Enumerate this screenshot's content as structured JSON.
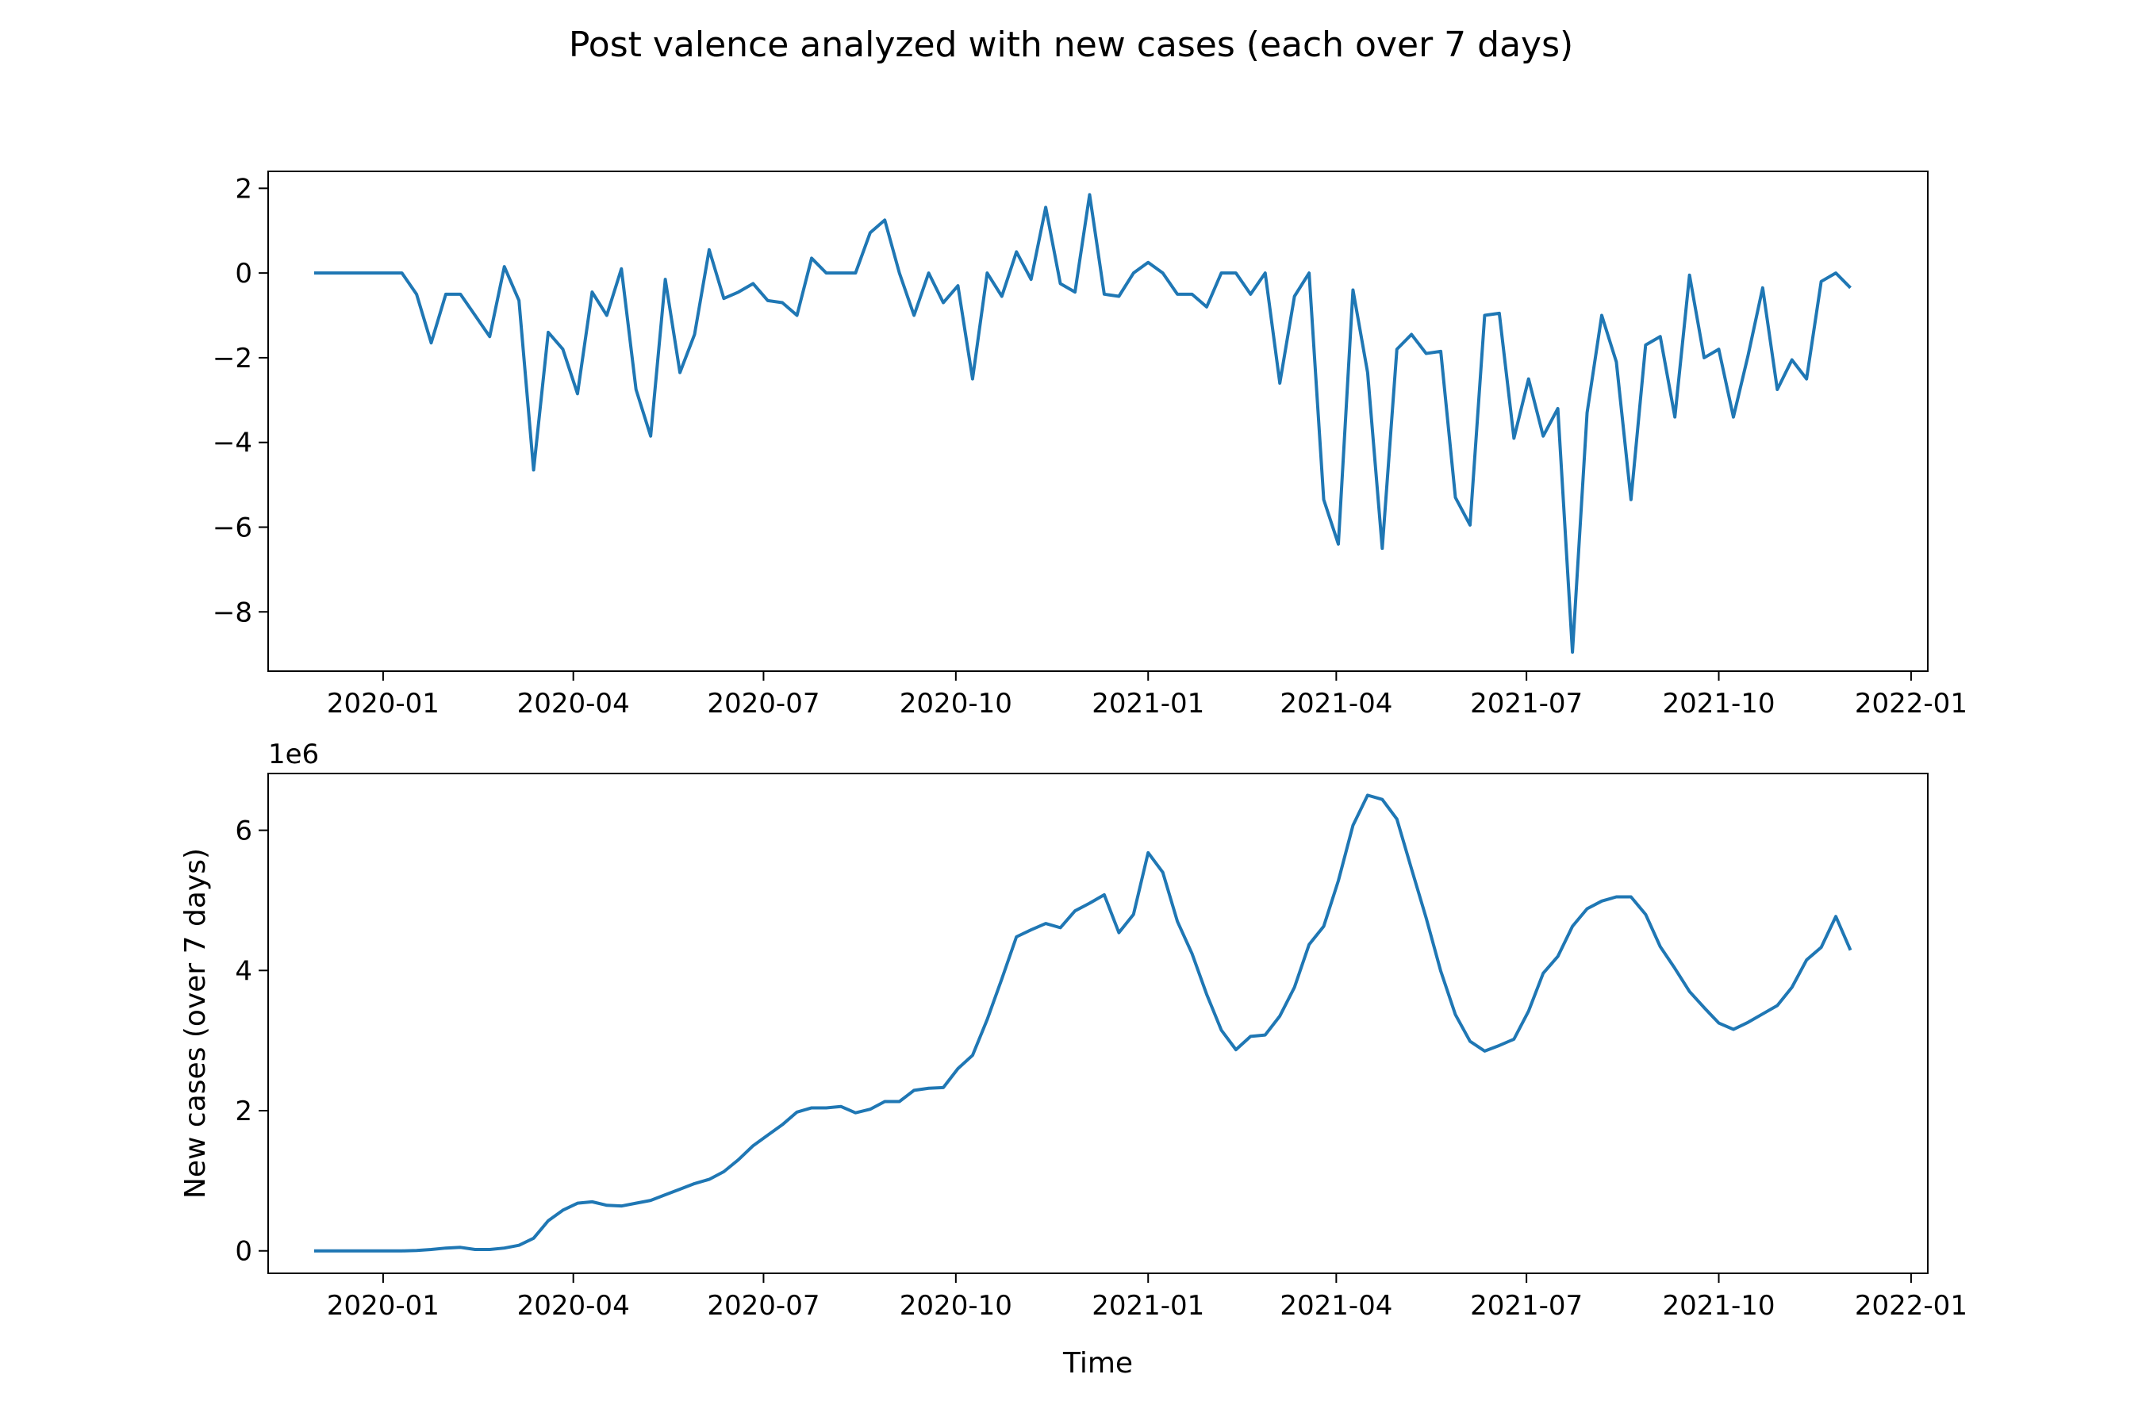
{
  "figure": {
    "title": "Post valence analyzed with new cases (each over 7 days)"
  },
  "chart_data": [
    {
      "type": "line",
      "title": "",
      "xlabel": "",
      "ylabel": "",
      "xlim": [
        "2019-11-07",
        "2022-01-09"
      ],
      "ylim": [
        -9.4,
        2.4
      ],
      "x_ticks": [
        "2020-01",
        "2020-04",
        "2020-07",
        "2020-10",
        "2021-01",
        "2021-04",
        "2021-07",
        "2021-10",
        "2022-01"
      ],
      "y_ticks": [
        "2",
        "0",
        "−2",
        "−4",
        "−6",
        "−8"
      ],
      "y_tick_values": [
        2,
        0,
        -2,
        -4,
        -6,
        -8
      ],
      "color": "#1f77b4",
      "grid": false,
      "series": [
        {
          "x": [
            "2019-11-29",
            "2019-12-06",
            "2019-12-13",
            "2019-12-20",
            "2019-12-27",
            "2020-01-03",
            "2020-01-10",
            "2020-01-17",
            "2020-01-24",
            "2020-01-31",
            "2020-02-07",
            "2020-02-14",
            "2020-02-21",
            "2020-02-28",
            "2020-03-06",
            "2020-03-13",
            "2020-03-20",
            "2020-03-27",
            "2020-04-03",
            "2020-04-10",
            "2020-04-17",
            "2020-04-24",
            "2020-05-01",
            "2020-05-08",
            "2020-05-15",
            "2020-05-22",
            "2020-05-29",
            "2020-06-05",
            "2020-06-12",
            "2020-06-19",
            "2020-06-26",
            "2020-07-03",
            "2020-07-10",
            "2020-07-17",
            "2020-07-24",
            "2020-07-31",
            "2020-08-07",
            "2020-08-14",
            "2020-08-21",
            "2020-08-28",
            "2020-09-04",
            "2020-09-11",
            "2020-09-18",
            "2020-09-25",
            "2020-10-02",
            "2020-10-09",
            "2020-10-16",
            "2020-10-23",
            "2020-10-30",
            "2020-11-06",
            "2020-11-13",
            "2020-11-20",
            "2020-11-27",
            "2020-12-04",
            "2020-12-11",
            "2020-12-18",
            "2020-12-25",
            "2021-01-01",
            "2021-01-08",
            "2021-01-15",
            "2021-01-22",
            "2021-01-29",
            "2021-02-05",
            "2021-02-12",
            "2021-02-19",
            "2021-02-26",
            "2021-03-05",
            "2021-03-12",
            "2021-03-19",
            "2021-03-26",
            "2021-04-02",
            "2021-04-09",
            "2021-04-16",
            "2021-04-23",
            "2021-04-30",
            "2021-05-07",
            "2021-05-14",
            "2021-05-21",
            "2021-05-28",
            "2021-06-04",
            "2021-06-11",
            "2021-06-18",
            "2021-06-25",
            "2021-07-02",
            "2021-07-09",
            "2021-07-16",
            "2021-07-23",
            "2021-07-30",
            "2021-08-06",
            "2021-08-13",
            "2021-08-20",
            "2021-08-27",
            "2021-09-03",
            "2021-09-10",
            "2021-09-17",
            "2021-09-24",
            "2021-10-01",
            "2021-10-08",
            "2021-10-15",
            "2021-10-22",
            "2021-10-29",
            "2021-11-05",
            "2021-11-12",
            "2021-11-19",
            "2021-11-26",
            "2021-12-03"
          ],
          "values": [
            0,
            0,
            0,
            0,
            0,
            0,
            0,
            -0.5,
            -1.65,
            -0.5,
            -0.5,
            -1,
            -1.5,
            0.15,
            -0.65,
            -4.65,
            -1.4,
            -1.8,
            -2.85,
            -0.45,
            -1,
            0.1,
            -2.75,
            -3.85,
            -0.15,
            -2.35,
            -1.45,
            0.55,
            -0.6,
            -0.45,
            -0.25,
            -0.65,
            -0.7,
            -1,
            0.35,
            0,
            0,
            0,
            0.95,
            1.25,
            0,
            -1,
            0,
            -0.7,
            -0.3,
            -2.5,
            0,
            -0.55,
            0.5,
            -0.15,
            1.55,
            -0.25,
            -0.45,
            1.85,
            -0.5,
            -0.55,
            0,
            0.25,
            0,
            -0.5,
            -0.5,
            -0.8,
            0,
            0,
            -0.5,
            0,
            -2.6,
            -0.55,
            0,
            -5.35,
            -6.4,
            -0.4,
            -2.35,
            -6.5,
            -1.8,
            -1.45,
            -1.9,
            -1.85,
            -5.3,
            -5.95,
            -1,
            -0.95,
            -3.9,
            -2.5,
            -3.85,
            -3.2,
            -8.95,
            -3.3,
            -1,
            -2.1,
            -5.35,
            -1.7,
            -1.5,
            -3.4,
            -0.05,
            -2,
            -1.8,
            -3.4,
            -1.95,
            -0.35,
            -2.75,
            -2.05,
            -2.5,
            -0.2,
            0,
            -0.35
          ]
        }
      ]
    },
    {
      "type": "line",
      "title": "",
      "xlabel": "Time",
      "ylabel": "New cases (over 7 days)",
      "offset_text": "1e6",
      "xlim": [
        "2019-11-07",
        "2022-01-09"
      ],
      "ylim": [
        -320000,
        6810000
      ],
      "x_ticks": [
        "2020-01",
        "2020-04",
        "2020-07",
        "2020-10",
        "2021-01",
        "2021-04",
        "2021-07",
        "2021-10",
        "2022-01"
      ],
      "y_ticks": [
        "0",
        "2",
        "4",
        "6"
      ],
      "y_tick_values": [
        0,
        2000000,
        4000000,
        6000000
      ],
      "color": "#1f77b4",
      "grid": false,
      "series": [
        {
          "x": [
            "2019-11-29",
            "2019-12-06",
            "2019-12-13",
            "2019-12-20",
            "2019-12-27",
            "2020-01-03",
            "2020-01-10",
            "2020-01-17",
            "2020-01-24",
            "2020-01-31",
            "2020-02-07",
            "2020-02-14",
            "2020-02-21",
            "2020-02-28",
            "2020-03-06",
            "2020-03-13",
            "2020-03-20",
            "2020-03-27",
            "2020-04-03",
            "2020-04-10",
            "2020-04-17",
            "2020-04-24",
            "2020-05-01",
            "2020-05-08",
            "2020-05-15",
            "2020-05-22",
            "2020-05-29",
            "2020-06-05",
            "2020-06-12",
            "2020-06-19",
            "2020-06-26",
            "2020-07-03",
            "2020-07-10",
            "2020-07-17",
            "2020-07-24",
            "2020-07-31",
            "2020-08-07",
            "2020-08-14",
            "2020-08-21",
            "2020-08-28",
            "2020-09-04",
            "2020-09-11",
            "2020-09-18",
            "2020-09-25",
            "2020-10-02",
            "2020-10-09",
            "2020-10-16",
            "2020-10-23",
            "2020-10-30",
            "2020-11-06",
            "2020-11-13",
            "2020-11-20",
            "2020-11-27",
            "2020-12-04",
            "2020-12-11",
            "2020-12-18",
            "2020-12-25",
            "2021-01-01",
            "2021-01-08",
            "2021-01-15",
            "2021-01-22",
            "2021-01-29",
            "2021-02-05",
            "2021-02-12",
            "2021-02-19",
            "2021-02-26",
            "2021-03-05",
            "2021-03-12",
            "2021-03-19",
            "2021-03-26",
            "2021-04-02",
            "2021-04-09",
            "2021-04-16",
            "2021-04-23",
            "2021-04-30",
            "2021-05-07",
            "2021-05-14",
            "2021-05-21",
            "2021-05-28",
            "2021-06-04",
            "2021-06-11",
            "2021-06-18",
            "2021-06-25",
            "2021-07-02",
            "2021-07-09",
            "2021-07-16",
            "2021-07-23",
            "2021-07-30",
            "2021-08-06",
            "2021-08-13",
            "2021-08-20",
            "2021-08-27",
            "2021-09-03",
            "2021-09-10",
            "2021-09-17",
            "2021-09-24",
            "2021-10-01",
            "2021-10-08",
            "2021-10-15",
            "2021-10-22",
            "2021-10-29",
            "2021-11-05",
            "2021-11-12",
            "2021-11-19",
            "2021-11-26",
            "2021-12-03"
          ],
          "values": [
            0,
            0,
            0,
            0,
            0,
            0,
            0,
            5000,
            20000,
            40000,
            50000,
            20000,
            20000,
            40000,
            80000,
            180000,
            430000,
            580000,
            680000,
            700000,
            650000,
            640000,
            680000,
            720000,
            800000,
            880000,
            960000,
            1020000,
            1130000,
            1300000,
            1500000,
            1650000,
            1800000,
            1980000,
            2040000,
            2040000,
            2060000,
            1970000,
            2020000,
            2130000,
            2130000,
            2290000,
            2320000,
            2330000,
            2600000,
            2790000,
            3300000,
            3880000,
            4480000,
            4580000,
            4670000,
            4610000,
            4850000,
            4960000,
            5080000,
            4540000,
            4800000,
            5680000,
            5400000,
            4700000,
            4240000,
            3660000,
            3150000,
            2870000,
            3060000,
            3080000,
            3350000,
            3760000,
            4370000,
            4630000,
            5280000,
            6070000,
            6500000,
            6440000,
            6160000,
            5450000,
            4750000,
            3990000,
            3370000,
            2990000,
            2850000,
            2930000,
            3020000,
            3420000,
            3960000,
            4200000,
            4630000,
            4880000,
            4990000,
            5050000,
            5050000,
            4800000,
            4340000,
            4030000,
            3700000,
            3470000,
            3250000,
            3160000,
            3260000,
            3380000,
            3500000,
            3760000,
            4150000,
            4330000,
            4770000,
            4290000
          ]
        }
      ]
    }
  ]
}
